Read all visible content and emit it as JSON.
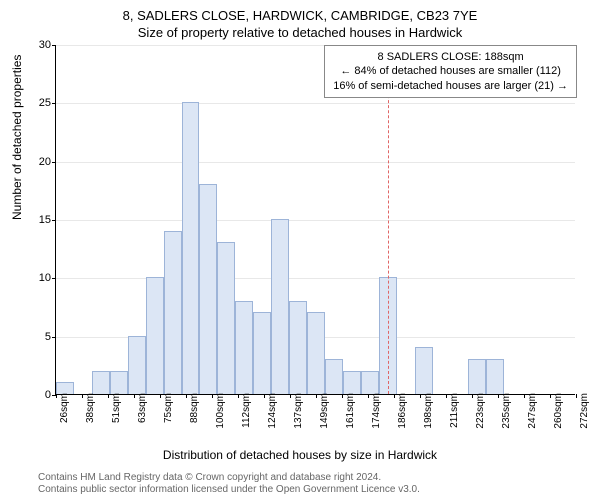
{
  "titles": {
    "main": "8, SADLERS CLOSE, HARDWICK, CAMBRIDGE, CB23 7YE",
    "sub": "Size of property relative to detached houses in Hardwick"
  },
  "y_axis": {
    "label": "Number of detached properties",
    "ticks": [
      0,
      5,
      10,
      15,
      20,
      25,
      30
    ],
    "max": 30
  },
  "x_axis": {
    "label": "Distribution of detached houses by size in Hardwick",
    "ticks": [
      "26sqm",
      "38sqm",
      "51sqm",
      "63sqm",
      "75sqm",
      "88sqm",
      "100sqm",
      "112sqm",
      "124sqm",
      "137sqm",
      "149sqm",
      "161sqm",
      "174sqm",
      "186sqm",
      "198sqm",
      "211sqm",
      "223sqm",
      "235sqm",
      "247sqm",
      "260sqm",
      "272sqm"
    ]
  },
  "chart": {
    "type": "histogram",
    "bar_color": "#dce6f5",
    "bar_border_color": "#9db4d8",
    "bar_width_ratio": 1.0,
    "grid_color": "#e8e8e8",
    "background_color": "#ffffff",
    "values": [
      1,
      0,
      2,
      2,
      5,
      10,
      14,
      25,
      18,
      13,
      8,
      7,
      15,
      8,
      7,
      3,
      2,
      2,
      10,
      0,
      4,
      0,
      0,
      3,
      3,
      0,
      0,
      0,
      0
    ]
  },
  "reference_line": {
    "position_index": 18.5,
    "color": "#e06666"
  },
  "info_box": {
    "line1": "8 SADLERS CLOSE: 188sqm",
    "line2": "← 84% of detached houses are smaller (112)",
    "line3": "16% of semi-detached houses are larger (21) →"
  },
  "attribution": {
    "line1": "Contains HM Land Registry data © Crown copyright and database right 2024.",
    "line2": "Contains public sector information licensed under the Open Government Licence v3.0."
  }
}
